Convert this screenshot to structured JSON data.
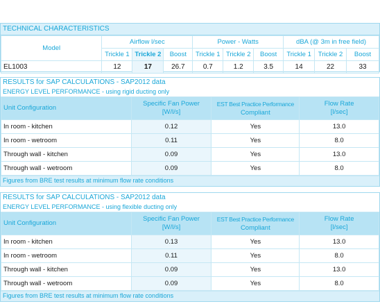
{
  "tech": {
    "title": "TECHNICAL CHARACTERISTICS",
    "model_label": "Model",
    "groups": [
      "Airflow l/sec",
      "Power - Watts",
      "dBA (@ 3m in free field)"
    ],
    "subheaders": [
      "Trickle 1",
      "Trickle 2",
      "Boost",
      "Trickle 1",
      "Trickle 2",
      "Boost",
      "Trickle 1",
      "Trickle 2",
      "Boost"
    ],
    "row": {
      "model": "EL1003",
      "values": [
        "12",
        "17",
        "26.7",
        "0.7",
        "1.2",
        "3.5",
        "14",
        "22",
        "33"
      ]
    }
  },
  "sap_rigid": {
    "title": "RESULTS for SAP CALCULATIONS -  SAP2012 data",
    "subtitle": "ENERGY LEVEL PERFORMANCE - using rigid ducting only",
    "headers": [
      "Unit Configuration",
      "Specific Fan Power",
      "[W/l/s]",
      "EST Best Practice Performance",
      "Compliant",
      "Flow Rate",
      "[l/sec]"
    ],
    "rows": [
      {
        "config": "In room - kitchen",
        "sfp": "0.12",
        "compliant": "Yes",
        "flow": "13.0"
      },
      {
        "config": "In room - wetroom",
        "sfp": "0.11",
        "compliant": "Yes",
        "flow": "8.0"
      },
      {
        "config": "Through wall - kitchen",
        "sfp": "0.09",
        "compliant": "Yes",
        "flow": "13.0"
      },
      {
        "config": "Through wall - wetroom",
        "sfp": "0.09",
        "compliant": "Yes",
        "flow": "8.0"
      }
    ],
    "footer": "Figures from BRE test results at minimum flow rate conditions"
  },
  "sap_flexible": {
    "title": "RESULTS for SAP CALCULATIONS -  SAP2012 data",
    "subtitle": "ENERGY LEVEL PERFORMANCE - using flexible ducting only",
    "headers": [
      "Unit Configuration",
      "Specific Fan Power",
      "[W/l/s]",
      "EST Best Practice Performance",
      "Compliant",
      "Flow Rate",
      "[l/sec]"
    ],
    "rows": [
      {
        "config": "In room - kitchen",
        "sfp": "0.13",
        "compliant": "Yes",
        "flow": "13.0"
      },
      {
        "config": "In room - wetroom",
        "sfp": "0.11",
        "compliant": "Yes",
        "flow": "8.0"
      },
      {
        "config": "Through wall - kitchen",
        "sfp": "0.09",
        "compliant": "Yes",
        "flow": "13.0"
      },
      {
        "config": "Through wall - wetroom",
        "sfp": "0.09",
        "compliant": "Yes",
        "flow": "8.0"
      }
    ],
    "footer": "Figures from BRE test results at minimum flow rate conditions"
  },
  "colors": {
    "accent": "#1aa7d8",
    "header_bg": "#b7e3f4",
    "light_bg": "#eaf6fc",
    "border": "#9fd8ee"
  }
}
